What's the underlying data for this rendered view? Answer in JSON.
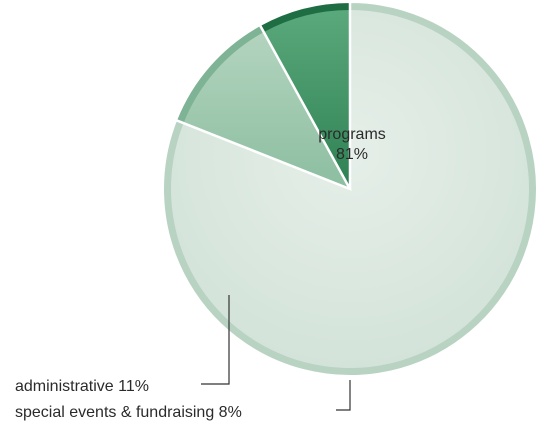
{
  "chart_data": {
    "type": "pie",
    "slices": [
      {
        "label": "programs",
        "pct_label": "81%",
        "value": 81,
        "color": "#dde9e1",
        "rim": "#b9d3c3"
      },
      {
        "label": "administrative",
        "pct_label": "11%",
        "value": 11,
        "color": "#9ec8ae",
        "rim": "#7fb395"
      },
      {
        "label": "special events & fundraising",
        "pct_label": "8%",
        "value": 8,
        "color": "#3f9466",
        "rim": "#1f6d43"
      }
    ],
    "labels": {
      "programs_name": "programs",
      "programs_pct": "81%",
      "administrative": "administrative 11%",
      "special_events": "special events & fundraising 8%"
    }
  }
}
